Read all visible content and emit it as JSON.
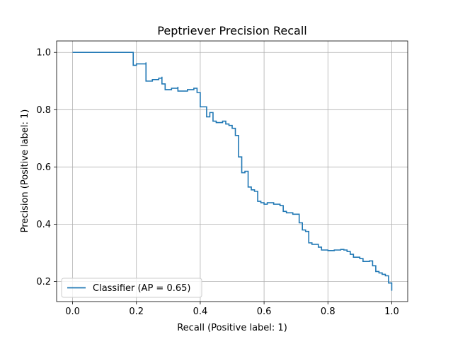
{
  "chart_data": {
    "type": "line",
    "title": "Peptriever Precision Recall",
    "xlabel": "Recall (Positive label: 1)",
    "ylabel": "Precision (Positive label: 1)",
    "xlim": [
      -0.05,
      1.05
    ],
    "ylim": [
      0.13,
      1.04
    ],
    "xticks": [
      "0.0",
      "0.2",
      "0.4",
      "0.6",
      "0.8",
      "1.0"
    ],
    "yticks": [
      "0.2",
      "0.4",
      "0.6",
      "0.8",
      "1.0"
    ],
    "grid": true,
    "legend_position": "lower left",
    "series": [
      {
        "name": "Classifier (AP = 0.65)",
        "color": "#1f77b4",
        "drawstyle": "steps-post",
        "points": [
          [
            0.0,
            1.0
          ],
          [
            0.19,
            1.0
          ],
          [
            0.19,
            0.955
          ],
          [
            0.2,
            0.96
          ],
          [
            0.23,
            0.965
          ],
          [
            0.23,
            0.9
          ],
          [
            0.25,
            0.905
          ],
          [
            0.27,
            0.91
          ],
          [
            0.28,
            0.915
          ],
          [
            0.28,
            0.89
          ],
          [
            0.29,
            0.87
          ],
          [
            0.31,
            0.875
          ],
          [
            0.33,
            0.88
          ],
          [
            0.33,
            0.865
          ],
          [
            0.36,
            0.87
          ],
          [
            0.38,
            0.875
          ],
          [
            0.39,
            0.86
          ],
          [
            0.4,
            0.85
          ],
          [
            0.4,
            0.81
          ],
          [
            0.41,
            0.81
          ],
          [
            0.42,
            0.775
          ],
          [
            0.43,
            0.79
          ],
          [
            0.44,
            0.76
          ],
          [
            0.45,
            0.755
          ],
          [
            0.47,
            0.76
          ],
          [
            0.48,
            0.75
          ],
          [
            0.49,
            0.745
          ],
          [
            0.5,
            0.735
          ],
          [
            0.51,
            0.71
          ],
          [
            0.52,
            0.71
          ],
          [
            0.52,
            0.635
          ],
          [
            0.53,
            0.58
          ],
          [
            0.54,
            0.585
          ],
          [
            0.55,
            0.57
          ],
          [
            0.55,
            0.53
          ],
          [
            0.56,
            0.52
          ],
          [
            0.57,
            0.515
          ],
          [
            0.58,
            0.48
          ],
          [
            0.59,
            0.475
          ],
          [
            0.6,
            0.47
          ],
          [
            0.61,
            0.475
          ],
          [
            0.63,
            0.47
          ],
          [
            0.65,
            0.465
          ],
          [
            0.66,
            0.445
          ],
          [
            0.67,
            0.44
          ],
          [
            0.69,
            0.435
          ],
          [
            0.71,
            0.43
          ],
          [
            0.71,
            0.405
          ],
          [
            0.72,
            0.38
          ],
          [
            0.73,
            0.375
          ],
          [
            0.74,
            0.335
          ],
          [
            0.75,
            0.33
          ],
          [
            0.77,
            0.32
          ],
          [
            0.78,
            0.31
          ],
          [
            0.8,
            0.308
          ],
          [
            0.82,
            0.31
          ],
          [
            0.84,
            0.312
          ],
          [
            0.85,
            0.31
          ],
          [
            0.86,
            0.305
          ],
          [
            0.87,
            0.295
          ],
          [
            0.88,
            0.285
          ],
          [
            0.9,
            0.28
          ],
          [
            0.91,
            0.27
          ],
          [
            0.93,
            0.272
          ],
          [
            0.94,
            0.255
          ],
          [
            0.95,
            0.235
          ],
          [
            0.96,
            0.23
          ],
          [
            0.97,
            0.225
          ],
          [
            0.98,
            0.22
          ],
          [
            0.99,
            0.195
          ],
          [
            1.0,
            0.19
          ],
          [
            1.0,
            0.168
          ]
        ]
      }
    ]
  }
}
